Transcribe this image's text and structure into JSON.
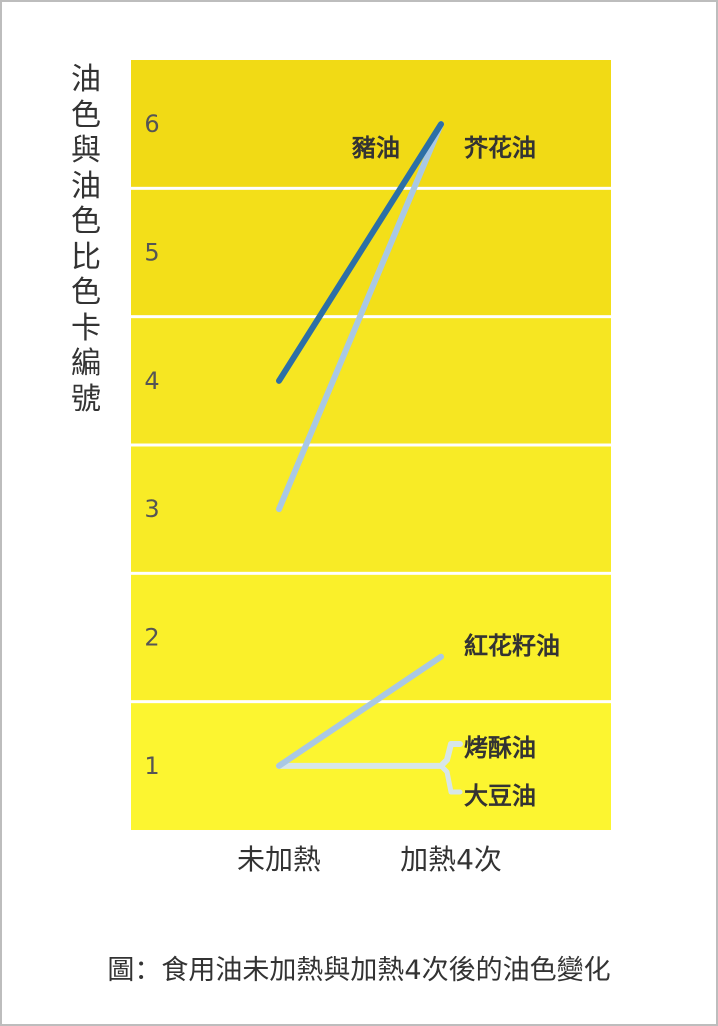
{
  "chart_data": {
    "type": "line",
    "ylabel": "油色與油色比色卡編號",
    "categories": [
      "未加熱",
      "加熱4次"
    ],
    "ylim": [
      0.5,
      6.5
    ],
    "yticks": [
      1,
      2,
      3,
      4,
      5,
      6
    ],
    "band_colors": [
      "#fcf530",
      "#faf02a",
      "#f8eb26",
      "#f6e622",
      "#f3df19",
      "#f1da15"
    ],
    "series": [
      {
        "name": "豬油",
        "values": [
          4,
          6
        ],
        "color": "#2c6fa6",
        "label_side": "left"
      },
      {
        "name": "芥花油",
        "values": [
          3,
          6
        ],
        "color": "#a9c8e4",
        "label_side": "right"
      },
      {
        "name": "紅花籽油",
        "values": [
          1,
          1.85
        ],
        "color": "#a9c8e4",
        "label_side": "right"
      },
      {
        "name": "烤酥油",
        "values": [
          1,
          1
        ],
        "color": "#d7e6e8",
        "label_side": "right"
      },
      {
        "name": "大豆油",
        "values": [
          1,
          1
        ],
        "color": "#d7e6e8",
        "label_side": "right"
      }
    ],
    "caption": "圖：食用油未加熱與加熱4次後的油色變化"
  }
}
